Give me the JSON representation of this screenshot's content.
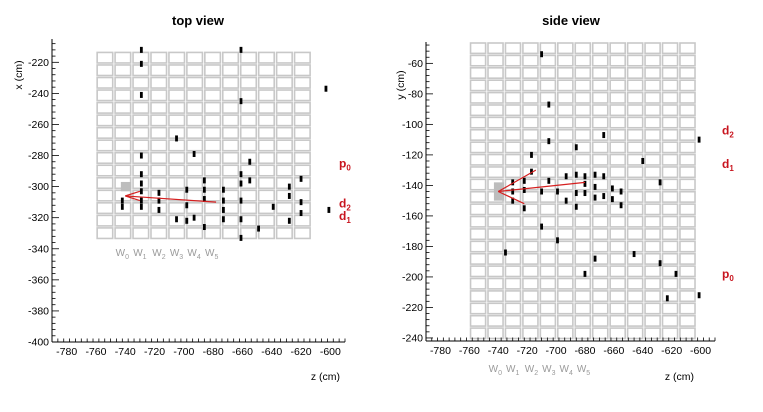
{
  "chart_data": [
    {
      "type": "scatter",
      "title": "top view",
      "xlabel": "z (cm)",
      "ylabel": "x (cm)",
      "xlim": [
        -790,
        -590
      ],
      "ylim": [
        -400,
        -205
      ],
      "x_ticks": [
        -780,
        -760,
        -740,
        -720,
        -700,
        -680,
        -660,
        -640,
        -620,
        -600
      ],
      "y_ticks": [
        -220,
        -240,
        -260,
        -280,
        -300,
        -320,
        -340,
        -360,
        -380,
        -400
      ],
      "detector_grid": {
        "z_min": -760,
        "z_max": -613,
        "columns": 12,
        "v_min": -334,
        "v_max": -213,
        "rows": 15
      },
      "shaded_cell": {
        "z": [
          -743,
          -736
        ],
        "v": [
          -303,
          -297
        ]
      },
      "wire_labels": [
        {
          "label": "W",
          "sub": "0",
          "z": -742
        },
        {
          "label": "W",
          "sub": "1",
          "z": -730
        },
        {
          "label": "W",
          "sub": "2",
          "z": -717
        },
        {
          "label": "W",
          "sub": "3",
          "z": -705
        },
        {
          "label": "W",
          "sub": "4",
          "z": -693
        },
        {
          "label": "W",
          "sub": "5",
          "z": -681
        }
      ],
      "particle_labels": [
        {
          "label": "p",
          "sub": "0",
          "y_value": -285
        },
        {
          "label": "d",
          "sub": "2",
          "y_value": -311
        },
        {
          "label": "d",
          "sub": "1",
          "y_value": -319
        }
      ],
      "tracks": [
        {
          "from": [
            -740,
            -306
          ],
          "to": [
            -678,
            -310
          ]
        },
        {
          "from": [
            -740,
            -306
          ],
          "to": [
            -730,
            -303
          ]
        },
        {
          "from": [
            -740,
            -306
          ],
          "to": [
            -730,
            -309
          ]
        }
      ],
      "hits": [
        {
          "z": -729,
          "v": -212
        },
        {
          "z": -729,
          "v": -221
        },
        {
          "z": -729,
          "v": -241
        },
        {
          "z": -729,
          "v": -280
        },
        {
          "z": -729,
          "v": -292
        },
        {
          "z": -729,
          "v": -298
        },
        {
          "z": -729,
          "v": -303
        },
        {
          "z": -729,
          "v": -309
        },
        {
          "z": -729,
          "v": -313
        },
        {
          "z": -742,
          "v": -309
        },
        {
          "z": -742,
          "v": -313
        },
        {
          "z": -717,
          "v": -304
        },
        {
          "z": -717,
          "v": -309
        },
        {
          "z": -717,
          "v": -315
        },
        {
          "z": -705,
          "v": -269
        },
        {
          "z": -705,
          "v": -321
        },
        {
          "z": -698,
          "v": -302
        },
        {
          "z": -698,
          "v": -312
        },
        {
          "z": -698,
          "v": -322
        },
        {
          "z": -693,
          "v": -279
        },
        {
          "z": -693,
          "v": -320
        },
        {
          "z": -686,
          "v": -296
        },
        {
          "z": -686,
          "v": -302
        },
        {
          "z": -686,
          "v": -308
        },
        {
          "z": -686,
          "v": -326
        },
        {
          "z": -673,
          "v": -302
        },
        {
          "z": -673,
          "v": -309
        },
        {
          "z": -673,
          "v": -315
        },
        {
          "z": -673,
          "v": -321
        },
        {
          "z": -661,
          "v": -212
        },
        {
          "z": -661,
          "v": -245
        },
        {
          "z": -661,
          "v": -292
        },
        {
          "z": -661,
          "v": -298
        },
        {
          "z": -661,
          "v": -309
        },
        {
          "z": -661,
          "v": -321
        },
        {
          "z": -661,
          "v": -333
        },
        {
          "z": -655,
          "v": -284
        },
        {
          "z": -655,
          "v": -296
        },
        {
          "z": -649,
          "v": -327
        },
        {
          "z": -639,
          "v": -313
        },
        {
          "z": -628,
          "v": -300
        },
        {
          "z": -628,
          "v": -306
        },
        {
          "z": -628,
          "v": -322
        },
        {
          "z": -620,
          "v": -295
        },
        {
          "z": -620,
          "v": -310
        },
        {
          "z": -620,
          "v": -317
        },
        {
          "z": -603,
          "v": -237
        },
        {
          "z": -601,
          "v": -315
        }
      ]
    },
    {
      "type": "scatter",
      "title": "side view",
      "xlabel": "z (cm)",
      "ylabel": "y (cm)",
      "xlim": [
        -790,
        -590
      ],
      "ylim": [
        -242,
        -46
      ],
      "x_ticks": [
        -780,
        -760,
        -740,
        -720,
        -700,
        -680,
        -660,
        -640,
        -620,
        -600
      ],
      "y_ticks": [
        -60,
        -80,
        -100,
        -120,
        -140,
        -160,
        -180,
        -200,
        -220,
        -240
      ],
      "detector_grid": {
        "z_min": -760,
        "z_max": -603,
        "columns": 13,
        "v_min": -241,
        "v_max": -46,
        "rows": 24
      },
      "shaded_cell": {
        "z": [
          -743,
          -736
        ],
        "v": [
          -150,
          -138
        ]
      },
      "wire_labels": [
        {
          "label": "W",
          "sub": "0",
          "z": -742
        },
        {
          "label": "W",
          "sub": "1",
          "z": -730
        },
        {
          "label": "W",
          "sub": "2",
          "z": -717
        },
        {
          "label": "W",
          "sub": "3",
          "z": -705
        },
        {
          "label": "W",
          "sub": "4",
          "z": -693
        },
        {
          "label": "W",
          "sub": "5",
          "z": -681
        }
      ],
      "particle_labels": [
        {
          "label": "d",
          "sub": "2",
          "y_value": -104
        },
        {
          "label": "d",
          "sub": "1",
          "y_value": -126
        },
        {
          "label": "p",
          "sub": "0",
          "y_value": -198
        }
      ],
      "tracks": [
        {
          "from": [
            -740,
            -144
          ],
          "to": [
            -680,
            -138
          ]
        },
        {
          "from": [
            -740,
            -144
          ],
          "to": [
            -714,
            -130
          ]
        },
        {
          "from": [
            -740,
            -144
          ],
          "to": [
            -722,
            -152
          ]
        }
      ],
      "hits": [
        {
          "z": -735,
          "v": -184
        },
        {
          "z": -730,
          "v": -138
        },
        {
          "z": -730,
          "v": -144
        },
        {
          "z": -730,
          "v": -150
        },
        {
          "z": -722,
          "v": -137
        },
        {
          "z": -722,
          "v": -143
        },
        {
          "z": -722,
          "v": -155
        },
        {
          "z": -717,
          "v": -120
        },
        {
          "z": -717,
          "v": -131
        },
        {
          "z": -710,
          "v": -54
        },
        {
          "z": -710,
          "v": -144
        },
        {
          "z": -710,
          "v": -167
        },
        {
          "z": -705,
          "v": -87
        },
        {
          "z": -705,
          "v": -111
        },
        {
          "z": -705,
          "v": -137
        },
        {
          "z": -699,
          "v": -144
        },
        {
          "z": -699,
          "v": -176
        },
        {
          "z": -693,
          "v": -134
        },
        {
          "z": -693,
          "v": -150
        },
        {
          "z": -686,
          "v": -115
        },
        {
          "z": -686,
          "v": -133
        },
        {
          "z": -686,
          "v": -145
        },
        {
          "z": -686,
          "v": -154
        },
        {
          "z": -680,
          "v": -134
        },
        {
          "z": -680,
          "v": -139
        },
        {
          "z": -680,
          "v": -145
        },
        {
          "z": -680,
          "v": -198
        },
        {
          "z": -673,
          "v": -133
        },
        {
          "z": -673,
          "v": -141
        },
        {
          "z": -673,
          "v": -148
        },
        {
          "z": -673,
          "v": -188
        },
        {
          "z": -667,
          "v": -107
        },
        {
          "z": -667,
          "v": -134
        },
        {
          "z": -667,
          "v": -147
        },
        {
          "z": -661,
          "v": -142
        },
        {
          "z": -661,
          "v": -149
        },
        {
          "z": -655,
          "v": -144
        },
        {
          "z": -655,
          "v": -153
        },
        {
          "z": -646,
          "v": -185
        },
        {
          "z": -640,
          "v": -124
        },
        {
          "z": -628,
          "v": -138
        },
        {
          "z": -628,
          "v": -191
        },
        {
          "z": -623,
          "v": -214
        },
        {
          "z": -617,
          "v": -198
        },
        {
          "z": -601,
          "v": -110
        },
        {
          "z": -601,
          "v": -212
        }
      ]
    }
  ]
}
